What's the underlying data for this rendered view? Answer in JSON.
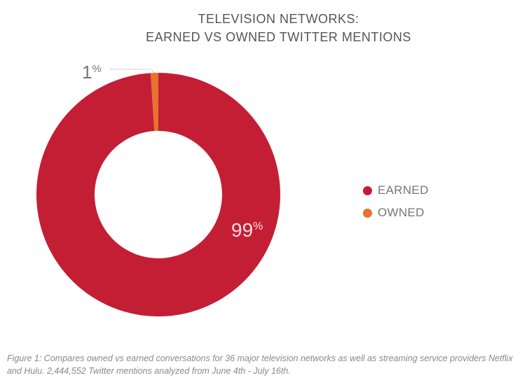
{
  "chart_data": {
    "type": "pie",
    "variant": "donut",
    "title_lines": [
      "TELEVISION NETWORKS:",
      "EARNED VS OWNED TWITTER MENTIONS"
    ],
    "slices": [
      {
        "name": "EARNED",
        "value": 99,
        "label": "99",
        "unit": "%",
        "color": "#c41e35"
      },
      {
        "name": "OWNED",
        "value": 1,
        "label": "1",
        "unit": "%",
        "color": "#e8722e"
      }
    ],
    "legend": {
      "placement": "right",
      "entries": [
        "EARNED",
        "OWNED"
      ]
    }
  },
  "caption": "Figure 1: Compares owned vs earned conversations for 36 major television networks as well as streaming service providers Netflix and Hulu. 2,444,552 Twitter mentions analyzed from June 4th - July 16th."
}
